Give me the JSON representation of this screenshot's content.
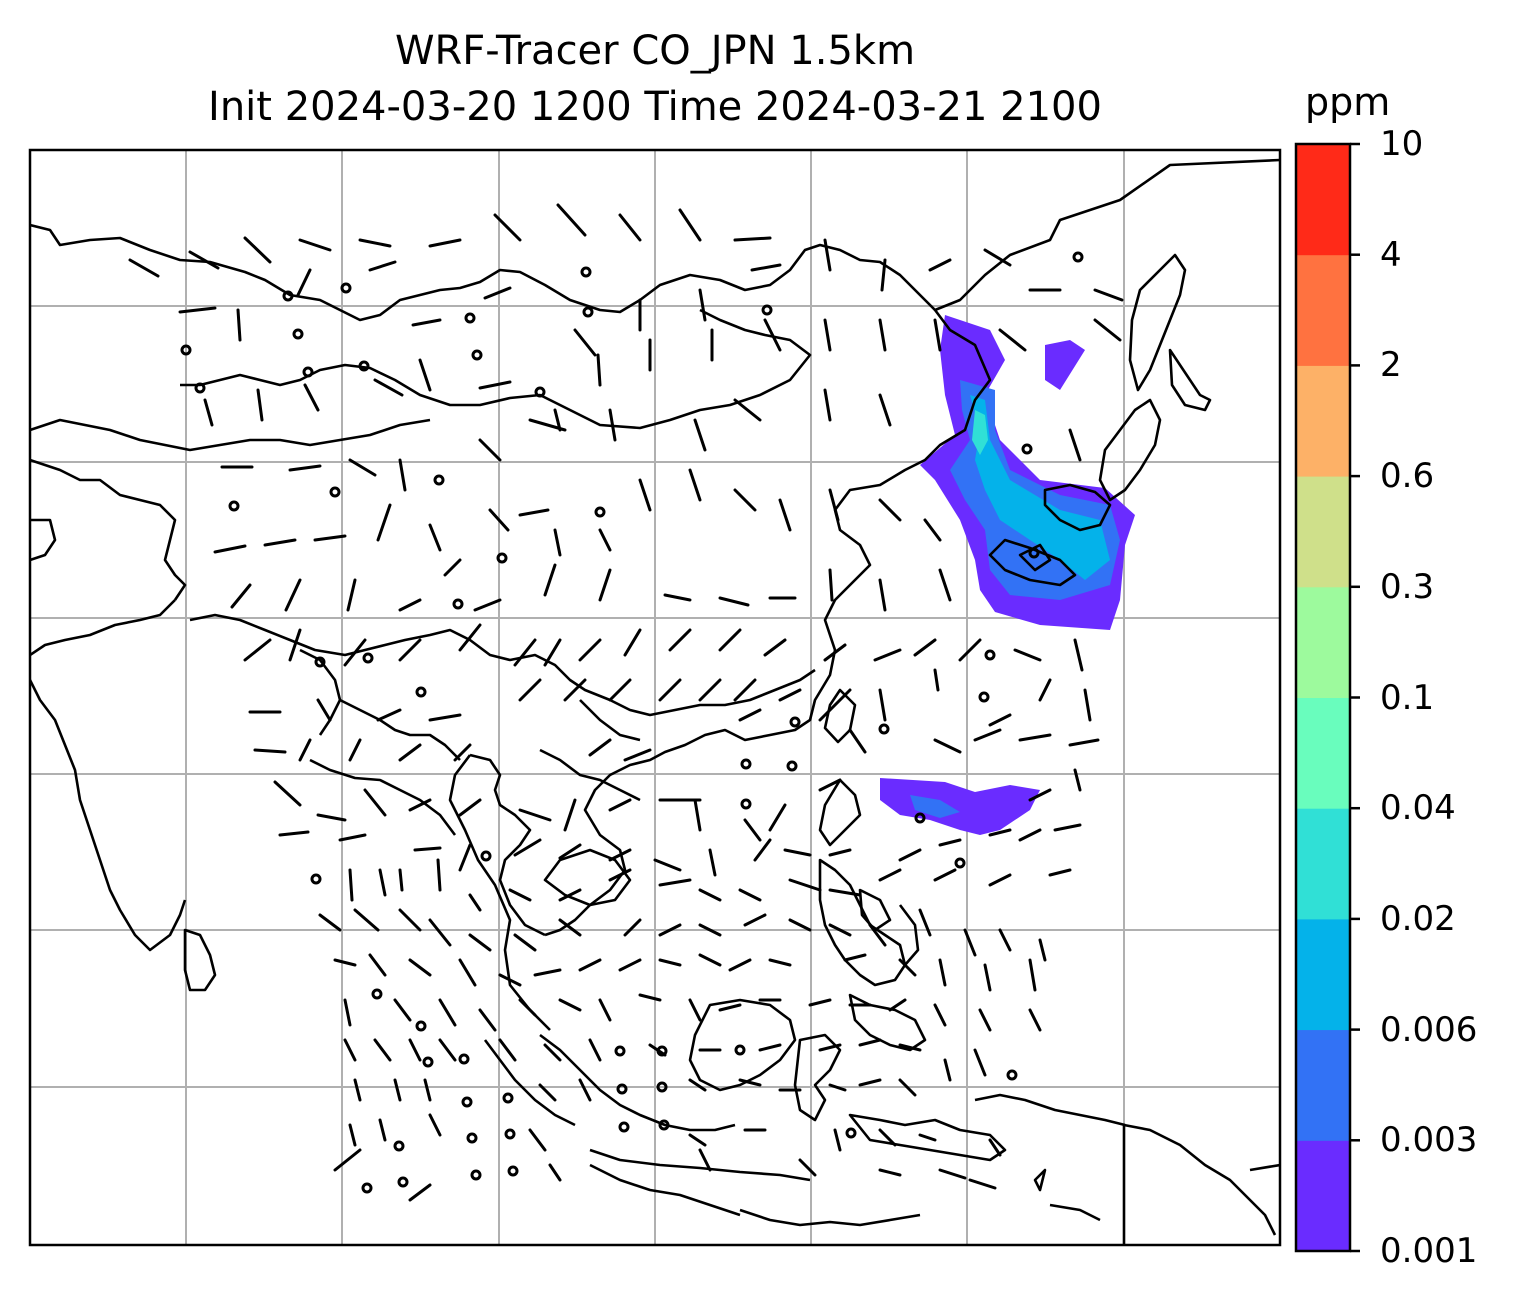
{
  "title": {
    "line1": "WRF-Tracer CO_JPN 1.5km",
    "line2": "Init 2024-03-20 1200 Time 2024-03-21 2100"
  },
  "colorbar": {
    "unit": "ppm",
    "levels": [
      "0.001",
      "0.003",
      "0.006",
      "0.02",
      "0.04",
      "0.1",
      "0.3",
      "0.6",
      "2",
      "4",
      "10"
    ],
    "colors": [
      "#6a2cff",
      "#3272f5",
      "#04b2ea",
      "#30e0d6",
      "#69fdbd",
      "#9dfa9d",
      "#cfe08a",
      "#fdb167",
      "#ff7240",
      "#ff2a18"
    ]
  },
  "map": {
    "gridlines": true,
    "gridline_color": "#b0b0b0",
    "coastline_color": "#000000",
    "tracer_plume_colors": [
      "#6a2cff",
      "#3272f5",
      "#04b2ea",
      "#30e0d6"
    ],
    "wind_barb_color": "#000000"
  }
}
